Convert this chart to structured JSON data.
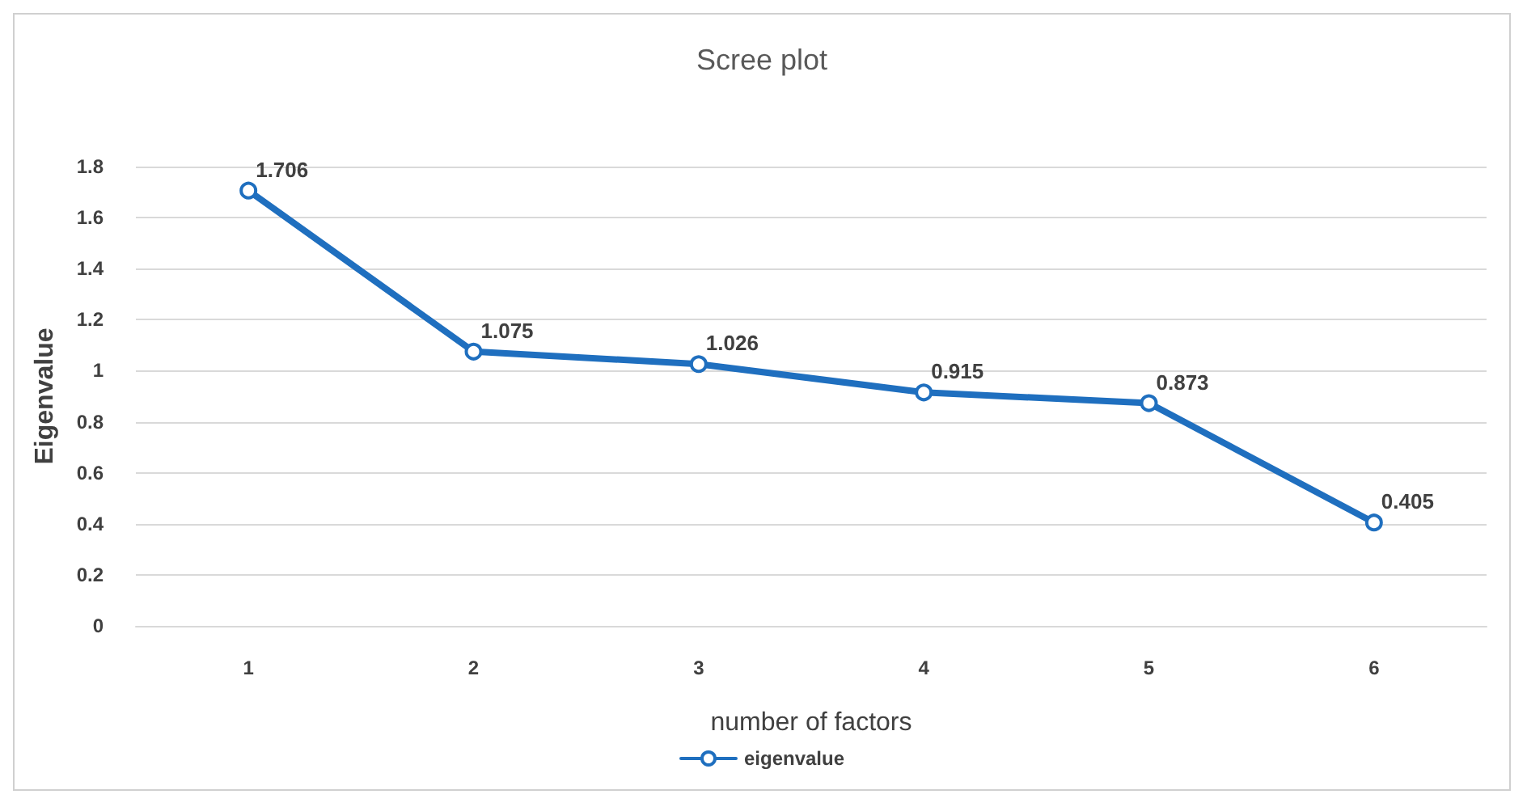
{
  "chart_data": {
    "type": "line",
    "title": "Scree plot",
    "xlabel": "number of factors",
    "ylabel": "Eigenvalue",
    "categories": [
      "1",
      "2",
      "3",
      "4",
      "5",
      "6"
    ],
    "series": [
      {
        "name": "eigenvalue",
        "color": "#1f6fbf",
        "values": [
          1.706,
          1.075,
          1.026,
          0.915,
          0.873,
          0.405
        ]
      }
    ],
    "ylim": [
      0,
      1.8
    ],
    "yticks": [
      0,
      0.2,
      0.4,
      0.6,
      0.8,
      1,
      1.2,
      1.4,
      1.6,
      1.8
    ],
    "grid": "y",
    "legend": "bottom",
    "marker": "circle",
    "line_style": "solid",
    "data_labels": true
  }
}
